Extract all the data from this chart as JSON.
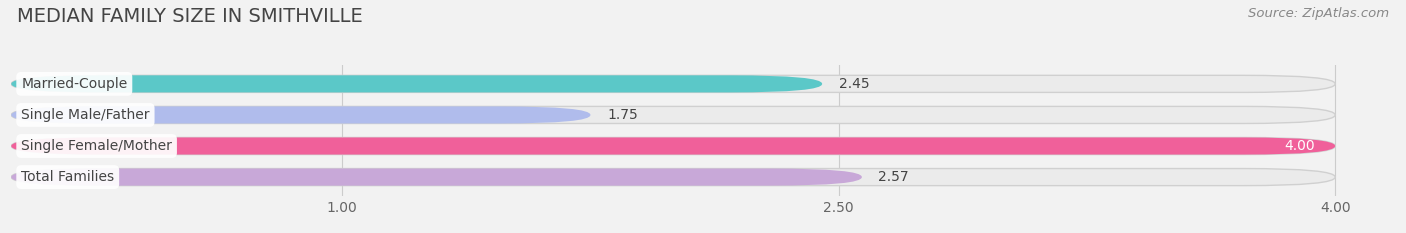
{
  "title": "MEDIAN FAMILY SIZE IN SMITHVILLE",
  "source": "Source: ZipAtlas.com",
  "categories": [
    "Married-Couple",
    "Single Male/Father",
    "Single Female/Mother",
    "Total Families"
  ],
  "values": [
    2.45,
    1.75,
    4.0,
    2.57
  ],
  "bar_colors": [
    "#5bc8c8",
    "#b0bcec",
    "#f0609a",
    "#c8a8d8"
  ],
  "background_color": "#f2f2f2",
  "bar_bg_color": "#ebebeb",
  "xlim_start": 0.0,
  "xlim_end": 4.18,
  "xmax": 4.0,
  "xticks": [
    1.0,
    2.5,
    4.0
  ],
  "xticklabels": [
    "1.00",
    "2.50",
    "4.00"
  ],
  "value_labels": [
    "2.45",
    "1.75",
    "4.00",
    "2.57"
  ],
  "value_label_inside": [
    false,
    false,
    true,
    false
  ],
  "label_fontsize": 10,
  "title_fontsize": 14,
  "source_fontsize": 9.5
}
